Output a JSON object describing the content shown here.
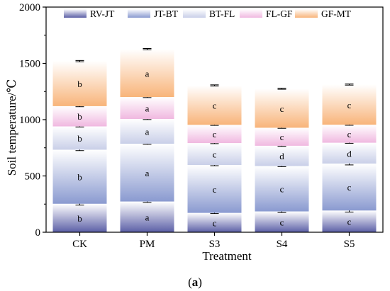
{
  "chart_data": {
    "type": "bar",
    "stacked": true,
    "panel_label": "a",
    "xlabel": "Treatment",
    "ylabel": "Soil temperature/℃",
    "ylim": [
      0,
      2000
    ],
    "yticks": [
      0,
      500,
      1000,
      1500,
      2000
    ],
    "categories": [
      "CK",
      "PM",
      "S3",
      "S4",
      "S5"
    ],
    "legend_position": "top",
    "series": [
      {
        "name": "RV-JT",
        "color": "#5b5fa6",
        "values": [
          253,
          273,
          172,
          185,
          193
        ],
        "errors": [
          12,
          8,
          6,
          10,
          14
        ],
        "labels": [
          "b",
          "a",
          "c",
          "c",
          "c"
        ]
      },
      {
        "name": "JT-BT",
        "color": "#8a9ad0",
        "values": [
          480,
          513,
          425,
          403,
          417
        ],
        "errors": [
          8,
          5,
          6,
          6,
          12
        ],
        "labels": [
          "b",
          "a",
          "c",
          "c",
          "c"
        ]
      },
      {
        "name": "BT-FL",
        "color": "#c9cfe8",
        "values": [
          207,
          220,
          195,
          180,
          185
        ],
        "errors": [
          5,
          5,
          5,
          5,
          5
        ],
        "labels": [
          "b",
          "a",
          "c",
          "d",
          "d"
        ]
      },
      {
        "name": "FL-GF",
        "color": "#f0b8e0",
        "values": [
          180,
          195,
          162,
          160,
          160
        ],
        "errors": [
          5,
          5,
          5,
          5,
          5
        ],
        "labels": [
          "b",
          "a",
          "c",
          "c",
          "c"
        ]
      },
      {
        "name": "GF-MT",
        "color": "#f8b47a",
        "values": [
          400,
          425,
          350,
          347,
          357
        ],
        "errors": [
          6,
          6,
          5,
          5,
          5
        ],
        "labels": [
          "b",
          "a",
          "c",
          "c",
          "c"
        ]
      }
    ]
  }
}
